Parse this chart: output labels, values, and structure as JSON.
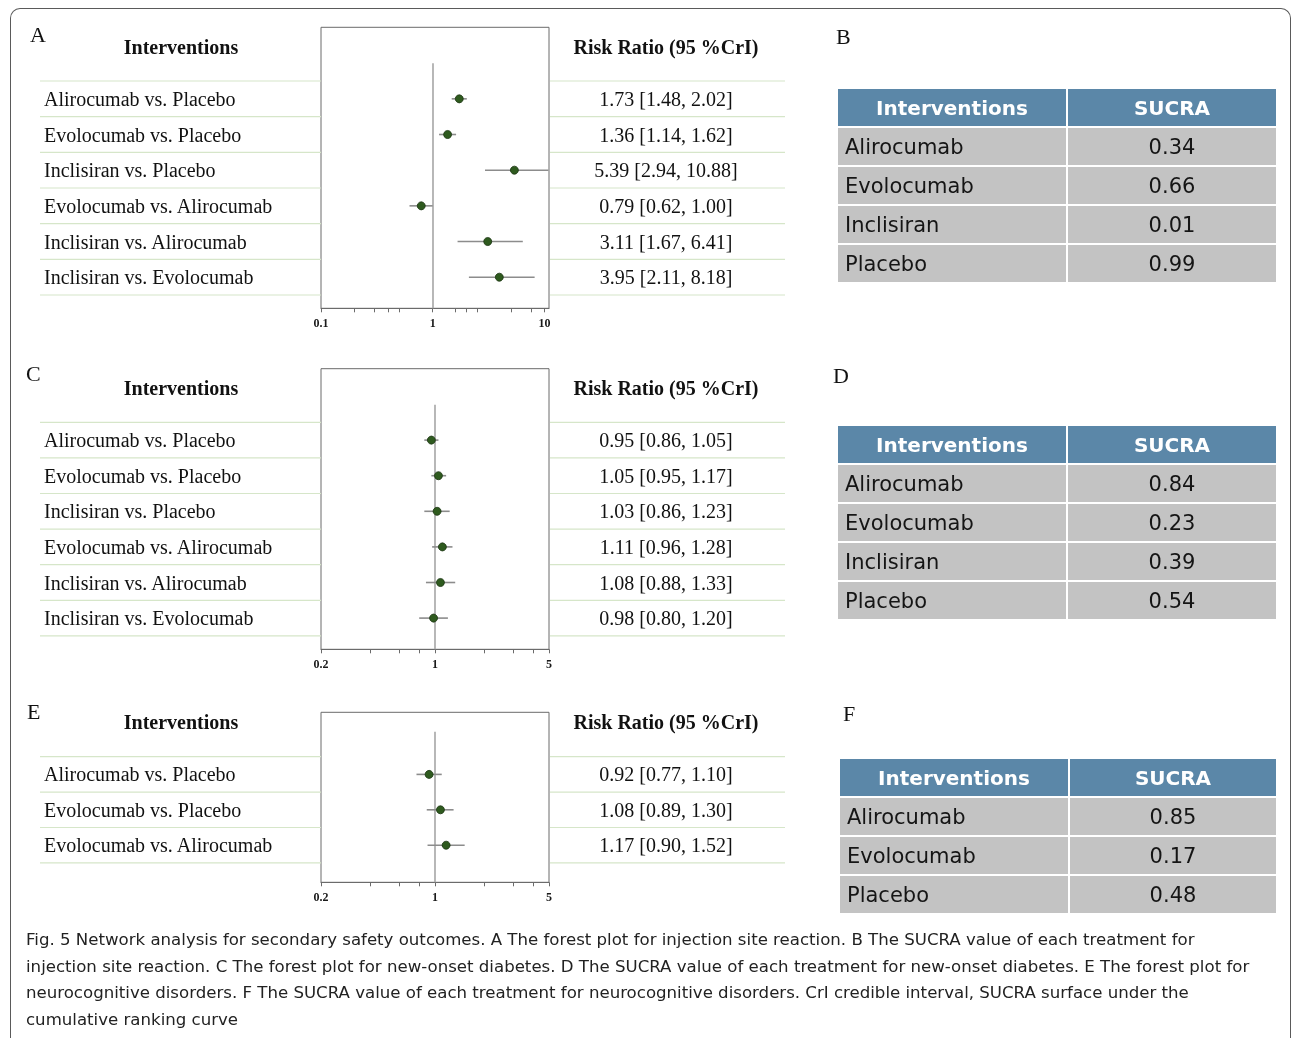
{
  "chart_data": [
    {
      "type": "scatter",
      "title": "A",
      "orientation": "horizontal",
      "ylabel": "Interventions",
      "y2label": "Risk Ratio (95 %CrI)",
      "categories": [
        "Alirocumab vs. Placebo",
        "Evolocumab vs. Placebo",
        "Inclisiran vs. Placebo",
        "Evolocumab vs. Alirocumab",
        "Inclisiran vs. Alirocumab",
        "Inclisiran vs. Evolocumab"
      ],
      "values": [
        1.73,
        1.36,
        5.39,
        0.79,
        3.11,
        3.95
      ],
      "errors": [
        [
          1.48,
          2.02
        ],
        [
          1.14,
          1.62
        ],
        [
          2.94,
          10.88
        ],
        [
          0.62,
          1.0
        ],
        [
          1.67,
          6.41
        ],
        [
          2.11,
          8.18
        ]
      ],
      "value_labels": [
        "1.73 [1.48, 2.02]",
        "1.36 [1.14, 1.62]",
        "5.39 [2.94, 10.88]",
        "0.79 [0.62, 1.00]",
        "3.11 [1.67, 6.41]",
        "3.95 [2.11, 8.18]"
      ],
      "color": "#2e5a1e",
      "marker": "circle",
      "log": "x",
      "xlim": [
        0.1,
        11
      ],
      "xticks": [
        0.1,
        {
          "value": 0.2,
          "label": null
        },
        {
          "value": 0.3,
          "label": null
        },
        {
          "value": 0.4,
          "label": null
        },
        {
          "value": 0.5,
          "label": null
        },
        1,
        {
          "value": 1.6,
          "label": null
        },
        {
          "value": 2,
          "label": null
        },
        {
          "value": 2.5,
          "label": null
        },
        {
          "value": 5,
          "label": null
        },
        {
          "value": 7.7,
          "label": null
        },
        10
      ],
      "ref_lines": [
        {
          "axis": "x",
          "value": 1,
          "color": "#a6a6a6"
        }
      ]
    },
    {
      "type": "other",
      "title": "B",
      "ylabel": "Interventions",
      "y2label": "SUCRA",
      "categories": [
        "Alirocumab",
        "Evolocumab",
        "Inclisiran",
        "Placebo"
      ],
      "values": [
        0.34,
        0.66,
        0.01,
        0.99
      ],
      "data_labels": true
    },
    {
      "type": "scatter",
      "title": "C",
      "orientation": "horizontal",
      "ylabel": "Interventions",
      "y2label": "Risk Ratio (95 %CrI)",
      "categories": [
        "Alirocumab vs. Placebo",
        "Evolocumab vs. Placebo",
        "Inclisiran vs. Placebo",
        "Evolocumab vs. Alirocumab",
        "Inclisiran vs. Alirocumab",
        "Inclisiran vs. Evolocumab"
      ],
      "values": [
        0.95,
        1.05,
        1.03,
        1.11,
        1.08,
        0.98
      ],
      "errors": [
        [
          0.86,
          1.05
        ],
        [
          0.95,
          1.17
        ],
        [
          0.86,
          1.23
        ],
        [
          0.96,
          1.28
        ],
        [
          0.88,
          1.33
        ],
        [
          0.8,
          1.2
        ]
      ],
      "value_labels": [
        "0.95 [0.86, 1.05]",
        "1.05 [0.95, 1.17]",
        "1.03 [0.86, 1.23]",
        "1.11 [0.96, 1.28]",
        "1.08 [0.88, 1.33]",
        "0.98 [0.80, 1.20]"
      ],
      "color": "#2e5a1e",
      "marker": "circle",
      "log": "x",
      "xlim": [
        0.2,
        5
      ],
      "xticks": [
        0.2,
        {
          "value": 0.4,
          "label": null
        },
        {
          "value": 0.6,
          "label": null
        },
        {
          "value": 0.8,
          "label": null
        },
        1,
        {
          "value": 2,
          "label": null
        },
        {
          "value": 3,
          "label": null
        },
        {
          "value": 4,
          "label": null
        },
        5
      ],
      "ref_lines": [
        {
          "axis": "x",
          "value": 1,
          "color": "#a6a6a6"
        }
      ]
    },
    {
      "type": "other",
      "title": "D",
      "ylabel": "Interventions",
      "y2label": "SUCRA",
      "categories": [
        "Alirocumab",
        "Evolocumab",
        "Inclisiran",
        "Placebo"
      ],
      "values": [
        0.84,
        0.23,
        0.39,
        0.54
      ],
      "data_labels": true
    },
    {
      "type": "scatter",
      "title": "E",
      "orientation": "horizontal",
      "ylabel": "Interventions",
      "y2label": "Risk Ratio (95 %CrI)",
      "categories": [
        "Alirocumab vs. Placebo",
        "Evolocumab vs. Placebo",
        "Evolocumab vs. Alirocumab"
      ],
      "values": [
        0.92,
        1.08,
        1.17
      ],
      "errors": [
        [
          0.77,
          1.1
        ],
        [
          0.89,
          1.3
        ],
        [
          0.9,
          1.52
        ]
      ],
      "value_labels": [
        "0.92 [0.77, 1.10]",
        "1.08 [0.89, 1.30]",
        "1.17 [0.90, 1.52]"
      ],
      "color": "#2e5a1e",
      "marker": "circle",
      "log": "x",
      "xlim": [
        0.2,
        5
      ],
      "xticks": [
        0.2,
        {
          "value": 0.4,
          "label": null
        },
        {
          "value": 0.6,
          "label": null
        },
        {
          "value": 0.8,
          "label": null
        },
        1,
        {
          "value": 2,
          "label": null
        },
        {
          "value": 3,
          "label": null
        },
        {
          "value": 4,
          "label": null
        },
        5
      ],
      "ref_lines": [
        {
          "axis": "x",
          "value": 1,
          "color": "#a6a6a6"
        }
      ]
    },
    {
      "type": "other",
      "title": "F",
      "ylabel": "Interventions",
      "y2label": "SUCRA",
      "categories": [
        "Alirocumab",
        "Evolocumab",
        "Placebo"
      ],
      "values": [
        0.85,
        0.17,
        0.48
      ],
      "data_labels": true,
      "annotations": [
        "Fig. 5 Network analysis for secondary safety outcomes. A The forest plot for injection site reaction. B The SUCRA value of each treatment for injection site reaction. C The forest plot for new-onset diabetes. D The SUCRA value of each treatment for new-onset diabetes. E The forest plot for neurocognitive disorders. F The SUCRA value of each treatment for neurocognitive disorders. CrI credible interval, SUCRA surface under the cumulative ranking curve"
      ]
    }
  ]
}
